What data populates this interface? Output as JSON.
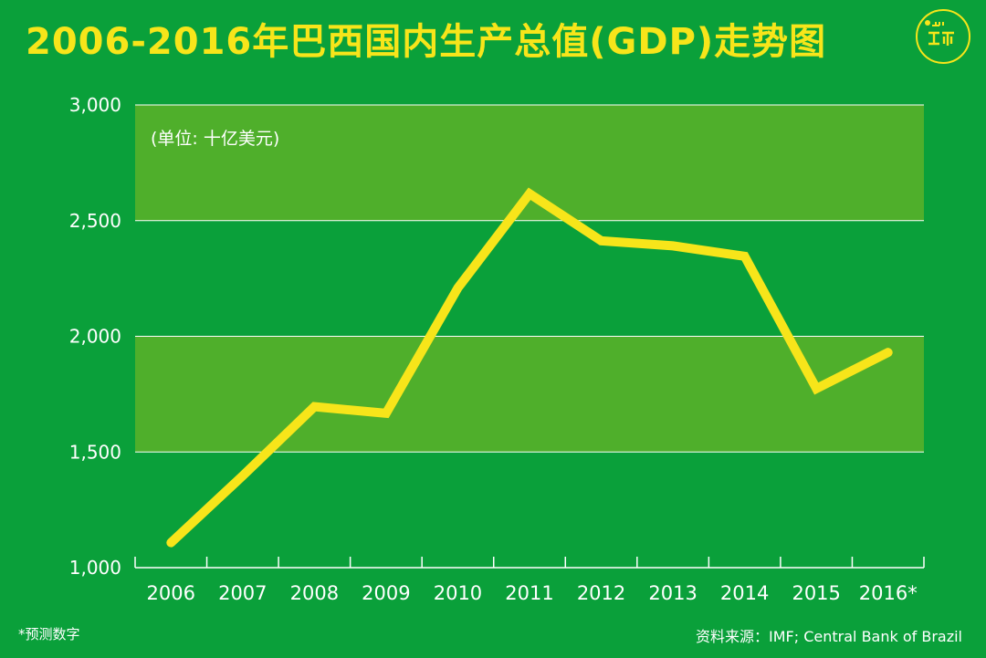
{
  "header": {
    "title": "2006-2016年巴西国内生产总值(GDP)走势图"
  },
  "logo": {
    "icon": "hk01-logo-icon",
    "color": "#f7e51a"
  },
  "colors": {
    "background": "#0aa03a",
    "band": "#4faf2b",
    "line": "#f7e51a",
    "gridline": "#ffffff",
    "text": "#ffffff"
  },
  "chart_data": {
    "type": "line",
    "unit_label": "(单位: 十亿美元)",
    "categories": [
      "2006",
      "2007",
      "2008",
      "2009",
      "2010",
      "2011",
      "2012",
      "2013",
      "2014",
      "2015",
      "2016*"
    ],
    "series": [
      {
        "values": [
          1108,
          1397,
          1696,
          1667,
          2209,
          2616,
          2413,
          2391,
          2346,
          1774,
          1930
        ]
      }
    ],
    "ylim": [
      1000,
      3000
    ],
    "yticks": [
      1000,
      1500,
      2000,
      2500,
      3000
    ],
    "ytick_labels": [
      "1,000",
      "1,500",
      "2,000",
      "2,500",
      "3,000"
    ],
    "shaded_bands": [
      [
        2500,
        3000
      ],
      [
        1500,
        2000
      ]
    ],
    "grid": true
  },
  "footer": {
    "note": "*预测数字",
    "source": "资料来源：IMF; Central Bank of Brazil"
  }
}
